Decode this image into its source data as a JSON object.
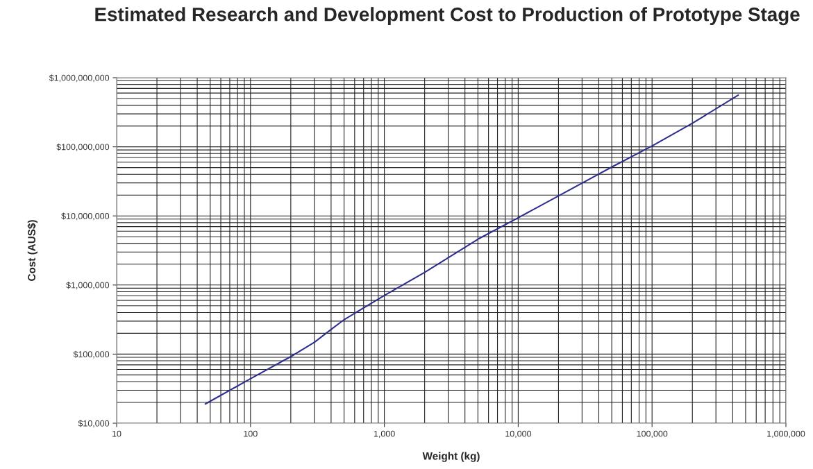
{
  "chart_data": {
    "type": "line",
    "title": "Estimated Research and Development Cost to Production of Prototype Stage",
    "xlabel": "Weight (kg)",
    "ylabel": "Cost (AUS$)",
    "log": "xy",
    "grid": true,
    "x": [
      46,
      100,
      200,
      300,
      400,
      500,
      1000,
      2000,
      5000,
      10000,
      20000,
      50000,
      100000,
      200000,
      440000
    ],
    "series": [
      {
        "color": "#2e2e8f",
        "values": [
          19000,
          44000,
          92000,
          148000,
          227000,
          315000,
          705000,
          1520000,
          4600000,
          9400000,
          19500000,
          51000000,
          103000000,
          219000000,
          560000000
        ]
      }
    ],
    "xlim": [
      10,
      1000000
    ],
    "ylim": [
      10000,
      1000000000
    ],
    "xticks": [
      {
        "value": 10,
        "label": "10"
      },
      {
        "value": 100,
        "label": "100"
      },
      {
        "value": 1000,
        "label": "1,000"
      },
      {
        "value": 10000,
        "label": "10,000"
      },
      {
        "value": 100000,
        "label": "100,000"
      },
      {
        "value": 1000000,
        "label": "1,000,000"
      }
    ],
    "yticks": [
      {
        "value": 10000,
        "label": "$10,000"
      },
      {
        "value": 100000,
        "label": "$100,000"
      },
      {
        "value": 1000000,
        "label": "$1,000,000"
      },
      {
        "value": 10000000,
        "label": "$10,000,000"
      },
      {
        "value": 100000000,
        "label": "$100,000,000"
      },
      {
        "value": 1000000000,
        "label": "$1,000,000,000"
      }
    ]
  }
}
